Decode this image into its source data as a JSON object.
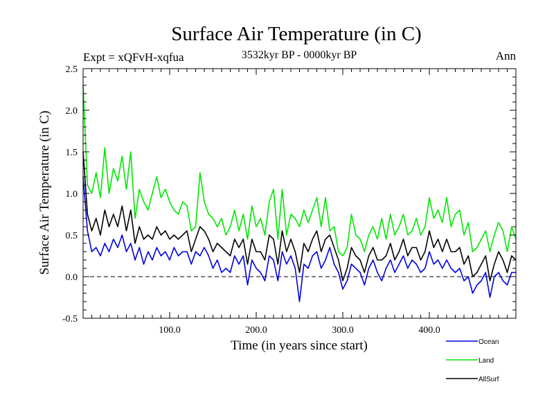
{
  "header": {
    "title": "Surface Air Temperature (in C)",
    "expt": "Expt = xQFvH-xqfua",
    "period": "3532kyr BP - 0000kyr BP",
    "season": "Ann"
  },
  "colors": {
    "ocean": "#0000dd",
    "land": "#00e600",
    "allsurf": "#000000",
    "axis": "#000000",
    "zero_line": "#000000"
  },
  "chart_data": {
    "type": "line",
    "title": "Surface Air Temperature (in C)",
    "xlabel": "Time (in years since start)",
    "ylabel": "Surface Air Temperature (in C)",
    "xlim": [
      0,
      500
    ],
    "ylim": [
      -0.5,
      2.5
    ],
    "x_ticks": [
      100,
      200,
      300,
      400
    ],
    "x_tick_labels": [
      "100.0",
      "200.0",
      "300.0",
      "400.0"
    ],
    "y_ticks": [
      -0.5,
      0.0,
      0.5,
      1.0,
      1.5,
      2.0,
      2.5
    ],
    "y_tick_labels": [
      "-0.5",
      "0.0",
      "0.5",
      "1.0",
      "1.5",
      "2.0",
      "2.5"
    ],
    "reference_line": {
      "y": 0.0,
      "style": "dashed"
    },
    "legend_position": "bottom-right",
    "x": [
      0,
      5,
      10,
      15,
      20,
      25,
      30,
      35,
      40,
      45,
      50,
      55,
      60,
      65,
      70,
      75,
      80,
      85,
      90,
      95,
      100,
      105,
      110,
      115,
      120,
      125,
      130,
      135,
      140,
      145,
      150,
      155,
      160,
      165,
      170,
      175,
      180,
      185,
      190,
      195,
      200,
      205,
      210,
      215,
      220,
      225,
      230,
      235,
      240,
      245,
      250,
      255,
      260,
      265,
      270,
      275,
      280,
      285,
      290,
      295,
      300,
      305,
      310,
      315,
      320,
      325,
      330,
      335,
      340,
      345,
      350,
      355,
      360,
      365,
      370,
      375,
      380,
      385,
      390,
      395,
      400,
      405,
      410,
      415,
      420,
      425,
      430,
      435,
      440,
      445,
      450,
      455,
      460,
      465,
      470,
      475,
      480,
      485,
      490,
      495,
      500
    ],
    "series": [
      {
        "name": "Ocean",
        "values": [
          1.2,
          0.55,
          0.3,
          0.35,
          0.25,
          0.4,
          0.3,
          0.45,
          0.35,
          0.5,
          0.3,
          0.4,
          0.2,
          0.35,
          0.15,
          0.3,
          0.2,
          0.35,
          0.25,
          0.3,
          0.2,
          0.35,
          0.25,
          0.3,
          0.3,
          0.15,
          0.3,
          0.25,
          0.35,
          0.25,
          0.1,
          0.2,
          0.05,
          0.1,
          0.05,
          0.25,
          0.15,
          0.25,
          -0.1,
          0.2,
          0.1,
          0.05,
          -0.05,
          0.25,
          0.2,
          -0.05,
          0.3,
          0.15,
          0.25,
          0.1,
          -0.3,
          0.15,
          0.1,
          0.25,
          0.3,
          0.1,
          0.2,
          0.35,
          0.15,
          0.05,
          -0.15,
          -0.05,
          0.15,
          0.1,
          0.05,
          -0.1,
          0.1,
          0.2,
          0.05,
          -0.05,
          0.1,
          0.2,
          0.05,
          0.15,
          0.25,
          0.1,
          0.2,
          0.15,
          0.05,
          0.1,
          0.3,
          0.15,
          0.2,
          0.1,
          0.2,
          0.1,
          0.05,
          0.1,
          -0.05,
          0.0,
          -0.2,
          -0.1,
          -0.05,
          0.05,
          -0.25,
          0.0,
          0.05,
          -0.05,
          -0.1,
          0.05,
          0.05
        ]
      },
      {
        "name": "Land",
        "values": [
          2.3,
          1.1,
          1.0,
          1.25,
          0.95,
          1.55,
          1.0,
          1.3,
          1.15,
          1.45,
          1.05,
          1.5,
          0.7,
          1.05,
          0.9,
          0.8,
          1.0,
          1.2,
          0.95,
          1.05,
          0.9,
          0.8,
          0.75,
          0.9,
          0.85,
          0.55,
          0.6,
          1.25,
          0.9,
          0.75,
          0.7,
          0.6,
          0.7,
          0.5,
          0.6,
          0.8,
          0.55,
          0.75,
          0.45,
          0.85,
          0.6,
          0.7,
          0.5,
          0.9,
          1.05,
          0.45,
          1.05,
          0.5,
          0.75,
          0.7,
          0.6,
          0.8,
          0.65,
          0.8,
          0.95,
          0.6,
          0.95,
          0.55,
          0.6,
          0.3,
          0.25,
          0.35,
          0.75,
          0.5,
          0.45,
          0.3,
          0.5,
          0.6,
          0.45,
          0.7,
          0.45,
          0.75,
          0.5,
          0.6,
          0.75,
          0.5,
          0.55,
          0.7,
          0.5,
          0.6,
          0.95,
          0.7,
          0.8,
          0.65,
          0.95,
          0.6,
          0.75,
          0.8,
          0.5,
          0.65,
          0.3,
          0.35,
          0.45,
          0.55,
          0.3,
          0.5,
          0.65,
          0.55,
          0.3,
          0.6,
          0.45
        ]
      },
      {
        "name": "AllSurf",
        "values": [
          1.5,
          0.75,
          0.55,
          0.7,
          0.5,
          0.8,
          0.6,
          0.75,
          0.6,
          0.85,
          0.55,
          0.8,
          0.4,
          0.6,
          0.45,
          0.5,
          0.45,
          0.6,
          0.5,
          0.55,
          0.45,
          0.5,
          0.45,
          0.5,
          0.55,
          0.3,
          0.45,
          0.6,
          0.55,
          0.45,
          0.3,
          0.4,
          0.35,
          0.3,
          0.25,
          0.45,
          0.35,
          0.45,
          0.15,
          0.45,
          0.3,
          0.3,
          0.2,
          0.5,
          0.45,
          0.15,
          0.55,
          0.3,
          0.45,
          0.3,
          0.05,
          0.4,
          0.3,
          0.45,
          0.55,
          0.3,
          0.45,
          0.5,
          0.35,
          0.2,
          -0.05,
          0.1,
          0.35,
          0.25,
          0.2,
          0.05,
          0.25,
          0.35,
          0.2,
          0.2,
          0.25,
          0.4,
          0.2,
          0.3,
          0.45,
          0.25,
          0.35,
          0.35,
          0.2,
          0.3,
          0.55,
          0.35,
          0.45,
          0.3,
          0.45,
          0.3,
          0.3,
          0.35,
          0.15,
          0.25,
          0.0,
          0.05,
          0.15,
          0.25,
          -0.05,
          0.15,
          0.3,
          0.2,
          0.05,
          0.25,
          0.2
        ]
      }
    ]
  }
}
